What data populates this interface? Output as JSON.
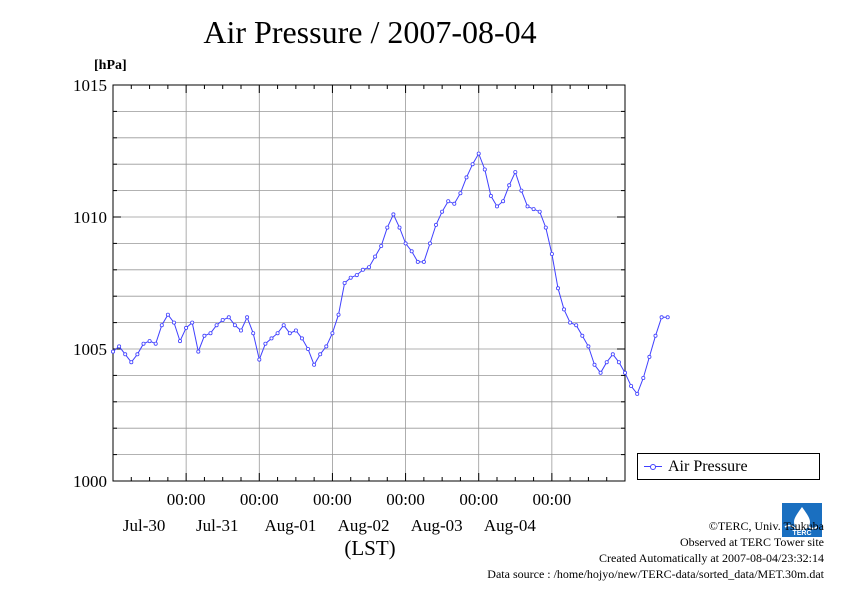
{
  "chart_data": {
    "type": "line",
    "title": "Air Pressure / 2007-08-04",
    "ylabel": "[hPa]",
    "xlabel": "(LST)",
    "ylim": [
      1000,
      1015
    ],
    "yticks": [
      "1000",
      "1005",
      "1010",
      "1015"
    ],
    "xlim_days": [
      "2007-07-29T00:00",
      "2007-08-05T00:00"
    ],
    "xticks": [
      {
        "time": "00:00",
        "date": "Jul-30"
      },
      {
        "time": "00:00",
        "date": "Jul-31"
      },
      {
        "time": "00:00",
        "date": "Aug-01"
      },
      {
        "time": "00:00",
        "date": "Aug-02"
      },
      {
        "time": "00:00",
        "date": "Aug-03"
      },
      {
        "time": "00:00",
        "date": "Aug-04"
      }
    ],
    "grid": true,
    "legend_position": "bottom-right outside",
    "series": [
      {
        "name": "Air Pressure",
        "color": "#4040ff",
        "points": [
          [
            "2007-07-29T00:00",
            1004.9
          ],
          [
            "2007-07-29T02:00",
            1005.1
          ],
          [
            "2007-07-29T04:00",
            1004.8
          ],
          [
            "2007-07-29T06:00",
            1004.5
          ],
          [
            "2007-07-29T08:00",
            1004.8
          ],
          [
            "2007-07-29T10:00",
            1005.2
          ],
          [
            "2007-07-29T12:00",
            1005.3
          ],
          [
            "2007-07-29T14:00",
            1005.2
          ],
          [
            "2007-07-29T16:00",
            1005.9
          ],
          [
            "2007-07-29T18:00",
            1006.3
          ],
          [
            "2007-07-29T20:00",
            1006.0
          ],
          [
            "2007-07-29T22:00",
            1005.3
          ],
          [
            "2007-07-30T00:00",
            1005.8
          ],
          [
            "2007-07-30T02:00",
            1006.0
          ],
          [
            "2007-07-30T04:00",
            1004.9
          ],
          [
            "2007-07-30T06:00",
            1005.5
          ],
          [
            "2007-07-30T08:00",
            1005.6
          ],
          [
            "2007-07-30T10:00",
            1005.9
          ],
          [
            "2007-07-30T12:00",
            1006.1
          ],
          [
            "2007-07-30T14:00",
            1006.2
          ],
          [
            "2007-07-30T16:00",
            1005.9
          ],
          [
            "2007-07-30T18:00",
            1005.7
          ],
          [
            "2007-07-30T20:00",
            1006.2
          ],
          [
            "2007-07-30T22:00",
            1005.6
          ],
          [
            "2007-07-31T00:00",
            1004.6
          ],
          [
            "2007-07-31T02:00",
            1005.2
          ],
          [
            "2007-07-31T04:00",
            1005.4
          ],
          [
            "2007-07-31T06:00",
            1005.6
          ],
          [
            "2007-07-31T08:00",
            1005.9
          ],
          [
            "2007-07-31T10:00",
            1005.6
          ],
          [
            "2007-07-31T12:00",
            1005.7
          ],
          [
            "2007-07-31T14:00",
            1005.4
          ],
          [
            "2007-07-31T16:00",
            1005.0
          ],
          [
            "2007-07-31T18:00",
            1004.4
          ],
          [
            "2007-07-31T20:00",
            1004.8
          ],
          [
            "2007-07-31T22:00",
            1005.1
          ],
          [
            "2007-08-01T00:00",
            1005.6
          ],
          [
            "2007-08-01T02:00",
            1006.3
          ],
          [
            "2007-08-01T04:00",
            1007.5
          ],
          [
            "2007-08-01T06:00",
            1007.7
          ],
          [
            "2007-08-01T08:00",
            1007.8
          ],
          [
            "2007-08-01T10:00",
            1008.0
          ],
          [
            "2007-08-01T12:00",
            1008.1
          ],
          [
            "2007-08-01T14:00",
            1008.5
          ],
          [
            "2007-08-01T16:00",
            1008.9
          ],
          [
            "2007-08-01T18:00",
            1009.6
          ],
          [
            "2007-08-01T20:00",
            1010.1
          ],
          [
            "2007-08-01T22:00",
            1009.6
          ],
          [
            "2007-08-02T00:00",
            1009.0
          ],
          [
            "2007-08-02T02:00",
            1008.7
          ],
          [
            "2007-08-02T04:00",
            1008.3
          ],
          [
            "2007-08-02T06:00",
            1008.3
          ],
          [
            "2007-08-02T08:00",
            1009.0
          ],
          [
            "2007-08-02T10:00",
            1009.7
          ],
          [
            "2007-08-02T12:00",
            1010.2
          ],
          [
            "2007-08-02T14:00",
            1010.6
          ],
          [
            "2007-08-02T16:00",
            1010.5
          ],
          [
            "2007-08-02T18:00",
            1010.9
          ],
          [
            "2007-08-02T20:00",
            1011.5
          ],
          [
            "2007-08-02T22:00",
            1012.0
          ],
          [
            "2007-08-03T00:00",
            1012.4
          ],
          [
            "2007-08-03T02:00",
            1011.8
          ],
          [
            "2007-08-03T04:00",
            1010.8
          ],
          [
            "2007-08-03T06:00",
            1010.4
          ],
          [
            "2007-08-03T08:00",
            1010.6
          ],
          [
            "2007-08-03T10:00",
            1011.2
          ],
          [
            "2007-08-03T12:00",
            1011.7
          ],
          [
            "2007-08-03T14:00",
            1011.0
          ],
          [
            "2007-08-03T16:00",
            1010.4
          ],
          [
            "2007-08-03T18:00",
            1010.3
          ],
          [
            "2007-08-03T20:00",
            1010.2
          ],
          [
            "2007-08-03T22:00",
            1009.6
          ],
          [
            "2007-08-04T00:00",
            1008.6
          ],
          [
            "2007-08-04T02:00",
            1007.3
          ],
          [
            "2007-08-04T04:00",
            1006.5
          ],
          [
            "2007-08-04T06:00",
            1006.0
          ],
          [
            "2007-08-04T08:00",
            1005.9
          ],
          [
            "2007-08-04T10:00",
            1005.5
          ],
          [
            "2007-08-04T12:00",
            1005.1
          ],
          [
            "2007-08-04T14:00",
            1004.4
          ],
          [
            "2007-08-04T16:00",
            1004.1
          ],
          [
            "2007-08-04T18:00",
            1004.5
          ],
          [
            "2007-08-04T20:00",
            1004.8
          ],
          [
            "2007-08-04T22:00",
            1004.5
          ],
          [
            "2007-08-05T00:00",
            1004.1
          ],
          [
            "2007-08-05T02:00",
            1003.6
          ],
          [
            "2007-08-05T04:00",
            1003.3
          ],
          [
            "2007-08-05T06:00",
            1003.9
          ],
          [
            "2007-08-05T08:00",
            1004.7
          ],
          [
            "2007-08-05T10:00",
            1005.5
          ],
          [
            "2007-08-05T12:00",
            1006.2
          ],
          [
            "2007-08-05T14:00",
            1006.2
          ]
        ]
      }
    ]
  },
  "legend": {
    "label": "Air Pressure"
  },
  "credits": {
    "copyright": "©TERC, Univ. Tsukuba",
    "observed": "Observed at TERC Tower site",
    "created": "Created Automatically at 2007-08-04/23:32:14",
    "source": "Data source : /home/hojyo/new/TERC-data/sorted_data/MET.30m.dat"
  },
  "logo": {
    "text": "TERC"
  }
}
